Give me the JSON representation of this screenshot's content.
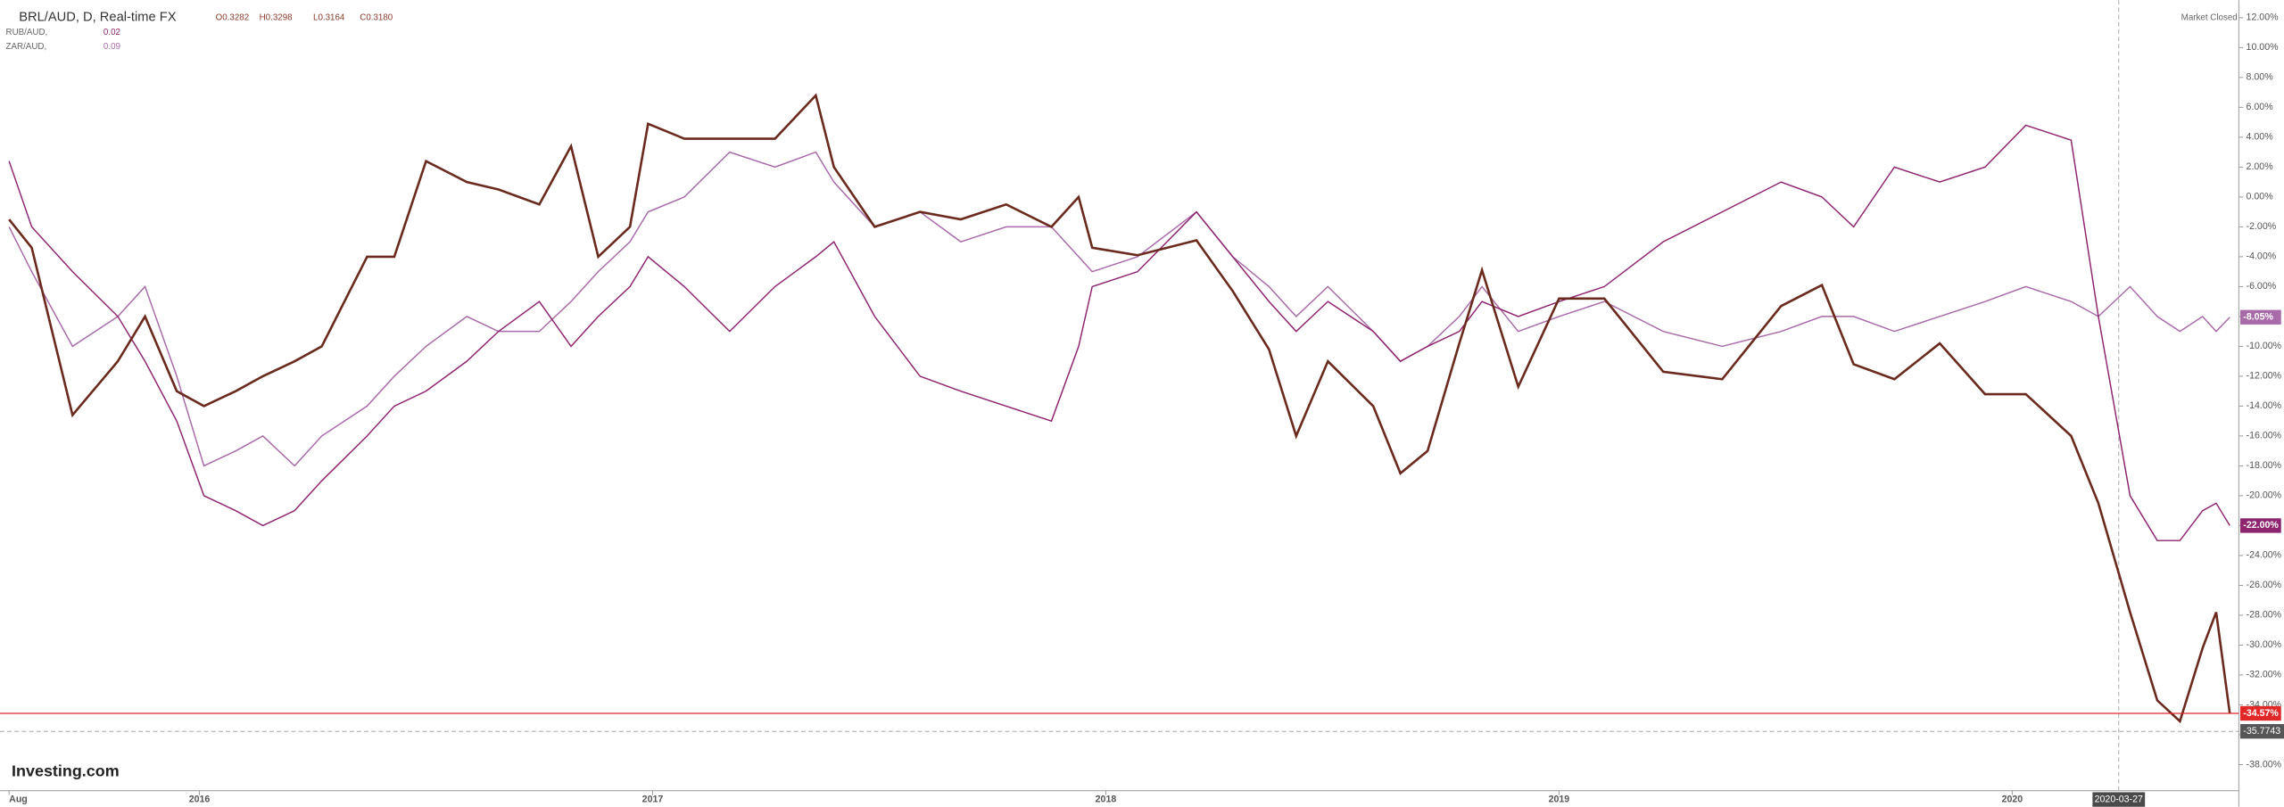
{
  "chart_data": {
    "type": "line",
    "legend": {
      "title": "BRL/AUD, D, Real-time FX",
      "ohlc": [
        "O0.3282",
        "H0.3298",
        "L0.3164",
        "C0.3180"
      ],
      "series_values": [
        "0.02",
        "0.09"
      ]
    },
    "status": "Market Closed",
    "brand": "Investing.com",
    "x": [
      2015.58,
      2015.63,
      2015.72,
      2015.82,
      2015.88,
      2015.95,
      2016.01,
      2016.08,
      2016.14,
      2016.21,
      2016.27,
      2016.37,
      2016.43,
      2016.5,
      2016.59,
      2016.66,
      2016.75,
      2016.82,
      2016.88,
      2016.95,
      2016.99,
      2017.07,
      2017.17,
      2017.27,
      2017.36,
      2017.4,
      2017.49,
      2017.59,
      2017.68,
      2017.78,
      2017.88,
      2017.94,
      2017.97,
      2018.07,
      2018.2,
      2018.28,
      2018.36,
      2018.42,
      2018.49,
      2018.59,
      2018.65,
      2018.71,
      2018.78,
      2018.83,
      2018.91,
      2019.0,
      2019.1,
      2019.23,
      2019.36,
      2019.49,
      2019.58,
      2019.65,
      2019.74,
      2019.84,
      2019.94,
      2020.03,
      2020.13,
      2020.19,
      2020.26,
      2020.32,
      2020.37,
      2020.42,
      2020.45,
      2020.48
    ],
    "series": [
      {
        "name": "BRL/AUD",
        "color": "#6b2a1e",
        "price_label": {
          "value": -34.57,
          "label": "-34.57%"
        },
        "values": [
          -1.5,
          -3.4,
          -14.6,
          -11,
          -8,
          -13,
          -14,
          -13,
          -12,
          -11,
          -10,
          -4,
          -4,
          2.4,
          1,
          0.5,
          -0.5,
          3.4,
          -4,
          -2,
          4.9,
          3.9,
          3.9,
          3.9,
          6.8,
          2,
          -2,
          -1,
          -1.5,
          -0.5,
          -2,
          0,
          -3.4,
          -3.9,
          -2.9,
          -6.3,
          -10.2,
          -16,
          -11,
          -14,
          -18.5,
          -17,
          -9.8,
          -4.9,
          -12.7,
          -6.8,
          -6.8,
          -11.7,
          -12.2,
          -7.3,
          -5.9,
          -11.2,
          -12.2,
          -9.8,
          -13.2,
          -13.2,
          -16,
          -20.5,
          -27.8,
          -33.7,
          -35.1,
          -30.2,
          -27.8,
          -34.57
        ]
      },
      {
        "name": "RUB/AUD, ",
        "color": "#8e2470",
        "price_label": {
          "value": -22,
          "label": "-22.00%"
        },
        "values": [
          2.4,
          -2,
          -5,
          -8,
          -11,
          -15,
          -20,
          -21,
          -22,
          -21,
          -19,
          -16,
          -14,
          -13,
          -11,
          -9,
          -7,
          -10,
          -8,
          -6,
          -4,
          -6,
          -9,
          -6,
          -4,
          -3,
          -8,
          -12,
          -13,
          -14,
          -15,
          -10,
          -6,
          -5,
          -1,
          -4,
          -7,
          -9,
          -7,
          -9,
          -11,
          -10,
          -9,
          -7,
          -8,
          -7,
          -6,
          -3,
          -1,
          1,
          0,
          -2,
          2,
          1,
          2,
          4.8,
          3.8,
          -8,
          -20,
          -23,
          -23,
          -21,
          -20.5,
          -22
        ]
      },
      {
        "name": "ZAR/AUD, ",
        "color": "#a86aa8",
        "price_label": {
          "value": -8.05,
          "label": "-8.05%"
        },
        "values": [
          -2,
          -5,
          -10,
          -8,
          -6,
          -12,
          -18,
          -17,
          -16,
          -18,
          -16,
          -14,
          -12,
          -10,
          -8,
          -9,
          -9,
          -7,
          -5,
          -3,
          -1,
          0,
          3,
          2,
          3,
          1,
          -2,
          -1,
          -3,
          -2,
          -2,
          -4,
          -5,
          -4,
          -1,
          -4,
          -6,
          -8,
          -6,
          -9,
          -11,
          -10,
          -8,
          -6,
          -9,
          -8,
          -7,
          -9,
          -10,
          -9,
          -8,
          -8,
          -9,
          -8,
          -7,
          -6,
          -7,
          -8,
          -6,
          -8,
          -9,
          -8,
          -9,
          -8.05
        ]
      }
    ],
    "low_line": {
      "value": -35.7743,
      "label": "-35.7743"
    },
    "crosshair": {
      "value": 2020.235,
      "label": "2020-03-27"
    },
    "xlim": [
      2015.56,
      2020.5
    ],
    "ylim": [
      -39.75,
      13.17
    ],
    "xticks": [
      {
        "value": 2015.58,
        "label": "Aug"
      },
      2016,
      2017,
      2018,
      2019,
      2020
    ],
    "yticks": [
      {
        "value": 12,
        "label": "12.00%"
      },
      {
        "value": 10,
        "label": "10.00%"
      },
      {
        "value": 8,
        "label": "8.00%"
      },
      {
        "value": 6,
        "label": "6.00%"
      },
      {
        "value": 4,
        "label": "4.00%"
      },
      {
        "value": 2,
        "label": "2.00%"
      },
      {
        "value": 0,
        "label": "0.00%"
      },
      {
        "value": -2,
        "label": "-2.00%"
      },
      {
        "value": -4,
        "label": "-4.00%"
      },
      {
        "value": -6,
        "label": "-6.00%"
      },
      {
        "value": -8,
        "label": "-8.00%"
      },
      {
        "value": -10,
        "label": "-10.00%"
      },
      {
        "value": -12,
        "label": "-12.00%"
      },
      {
        "value": -14,
        "label": "-14.00%"
      },
      {
        "value": -16,
        "label": "-16.00%"
      },
      {
        "value": -18,
        "label": "-18.00%"
      },
      {
        "value": -20,
        "label": "-20.00%"
      },
      {
        "value": -22,
        "label": "-22.00%"
      },
      {
        "value": -24,
        "label": "-24.00%"
      },
      {
        "value": -26,
        "label": "-26.00%"
      },
      {
        "value": -28,
        "label": "-28.00%"
      },
      {
        "value": -30,
        "label": "-30.00%"
      },
      {
        "value": -32,
        "label": "-32.00%"
      },
      {
        "value": -34,
        "label": "-34.00%"
      },
      {
        "value": -36,
        "label": "-36.00%"
      },
      {
        "value": -38,
        "label": "-38.00%"
      }
    ],
    "grid": false
  }
}
